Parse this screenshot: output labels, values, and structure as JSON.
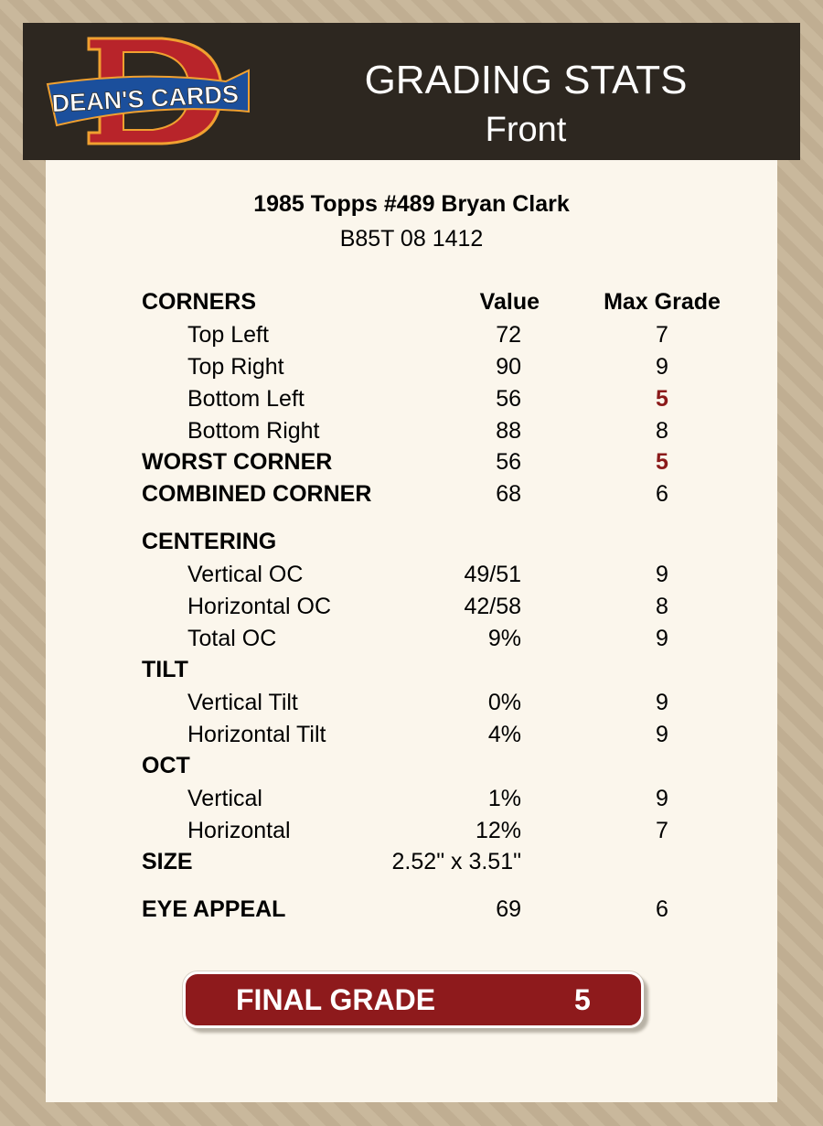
{
  "header": {
    "logo_text": "DEAN'S CARDS",
    "title": "GRADING STATS",
    "subtitle": "Front"
  },
  "card": {
    "name": "1985 Topps #489 Bryan Clark",
    "code": "B85T 08 1412"
  },
  "columns": {
    "value": "Value",
    "max_grade": "Max Grade"
  },
  "rows": [
    {
      "label": "CORNERS",
      "type": "section"
    },
    {
      "label": "Top Left",
      "value": "72",
      "max": "7"
    },
    {
      "label": "Top Right",
      "value": "90",
      "max": "9"
    },
    {
      "label": "Bottom Left",
      "value": "56",
      "max": "5",
      "highlight": true
    },
    {
      "label": "Bottom Right",
      "value": "88",
      "max": "8"
    },
    {
      "label": "WORST CORNER",
      "type": "bold",
      "value": "56",
      "max": "5",
      "highlight": true
    },
    {
      "label": "COMBINED CORNER",
      "type": "bold",
      "value": "68",
      "max": "6"
    },
    {
      "label": "CENTERING",
      "type": "bold"
    },
    {
      "label": "Vertical OC",
      "value": "49/51",
      "max": "9"
    },
    {
      "label": "Horizontal OC",
      "value": "42/58",
      "max": "8"
    },
    {
      "label": "Total OC",
      "value": "9%",
      "max": "9"
    },
    {
      "label": "TILT",
      "type": "bold"
    },
    {
      "label": "Vertical Tilt",
      "value": "0%",
      "max": "9"
    },
    {
      "label": "Horizontal Tilt",
      "value": "4%",
      "max": "9"
    },
    {
      "label": "OCT",
      "type": "bold"
    },
    {
      "label": "Vertical",
      "value": "1%",
      "max": "9"
    },
    {
      "label": "Horizontal",
      "value": "12%",
      "max": "7"
    },
    {
      "label": "SIZE",
      "type": "bold",
      "value": "2.52\" x 3.51\""
    },
    {
      "label": "EYE APPEAL",
      "type": "bold",
      "value": "69",
      "max": "6"
    }
  ],
  "final": {
    "label": "FINAL GRADE",
    "value": "5"
  },
  "colors": {
    "header_bg": "#2d2720",
    "panel_bg": "#fbf6ec",
    "accent_red": "#8e1a1c",
    "highlight": "#8b1a1a"
  }
}
